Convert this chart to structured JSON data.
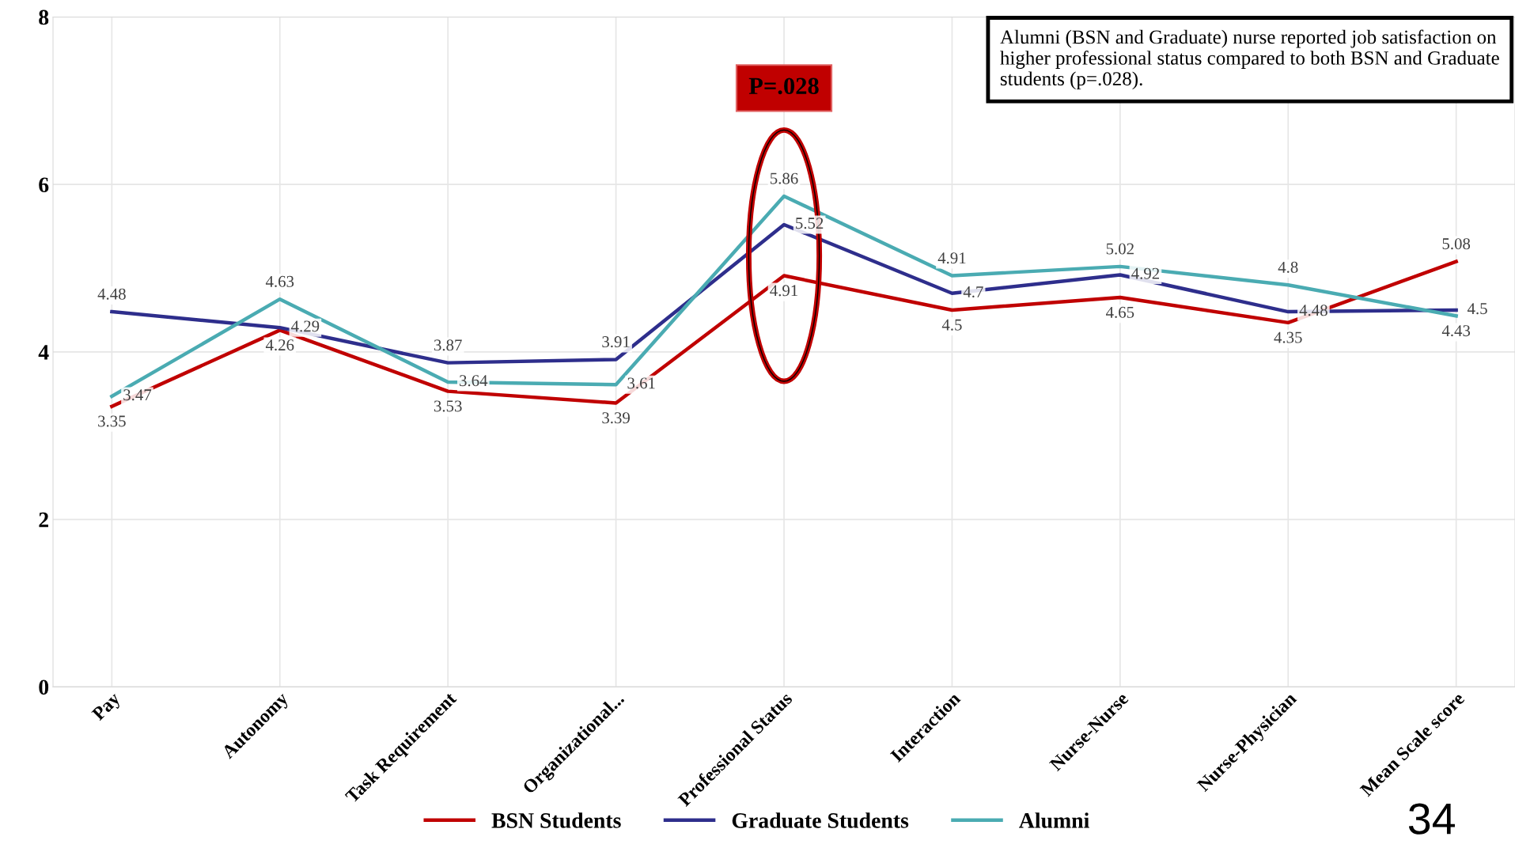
{
  "chart_data": {
    "type": "line",
    "categories": [
      "Pay",
      "Autonomy",
      "Task Requirement",
      "Organizational...",
      "Professional Status",
      "Interaction",
      "Nurse-Nurse",
      "Nurse-Physician",
      "Mean Scale score"
    ],
    "series": [
      {
        "name": "BSN Students",
        "color": "#c00000",
        "values": [
          3.35,
          4.26,
          3.53,
          3.39,
          4.91,
          4.5,
          4.65,
          4.35,
          5.08
        ]
      },
      {
        "name": "Graduate Students",
        "color": "#2e2e8c",
        "values": [
          4.48,
          4.29,
          3.87,
          3.91,
          5.52,
          4.7,
          4.92,
          4.48,
          4.5
        ]
      },
      {
        "name": "Alumni",
        "color": "#4aabb2",
        "values": [
          3.47,
          4.63,
          3.64,
          3.61,
          5.86,
          4.91,
          5.02,
          4.8,
          4.43
        ]
      }
    ],
    "ylim": [
      0,
      8
    ],
    "yticks": [
      0,
      2,
      4,
      6,
      8
    ],
    "grid": true,
    "legend": "bottom",
    "data_labels": true,
    "marker": "none",
    "line_style": "solid",
    "annotations": [
      "P=.028",
      "Alumni (BSN and Graduate) nurse reported job satisfaction on higher professional status compared to both BSN and Graduate students (p=.028).",
      "34"
    ]
  }
}
